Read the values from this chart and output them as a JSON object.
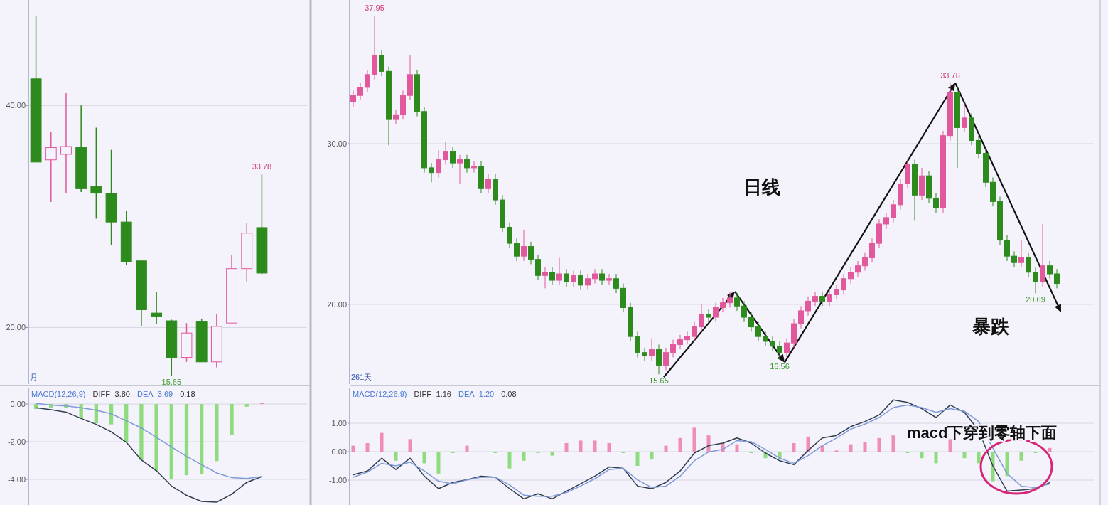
{
  "chart_data": [
    {
      "type": "candlestick",
      "categories": [
        null,
        null,
        null,
        null,
        null,
        null,
        null,
        null,
        null,
        null,
        null,
        null,
        null,
        null,
        null,
        null
      ],
      "ylim": [
        14.9,
        49.5
      ],
      "yticks": [
        {
          "value": 20,
          "label": "20.00"
        },
        {
          "value": 40,
          "label": "40.00"
        }
      ],
      "grid": "y",
      "tick_labels": "y",
      "ohlc": [
        [
          42.4,
          48.1,
          34.9,
          34.9
        ],
        [
          35.1,
          37.6,
          31.3,
          36.2
        ],
        [
          35.6,
          41.1,
          32.1,
          36.3
        ],
        [
          36.2,
          40.0,
          32.2,
          32.5
        ],
        [
          32.7,
          38.0,
          29.8,
          32.1
        ],
        [
          32.1,
          36.0,
          27.4,
          29.5
        ],
        [
          29.5,
          30.5,
          25.6,
          25.9
        ],
        [
          26.0,
          26.0,
          20.1,
          21.6
        ],
        [
          21.3,
          23.2,
          20.3,
          21.0
        ],
        [
          20.6,
          20.7,
          15.65,
          17.3
        ],
        [
          17.3,
          20.4,
          16.9,
          19.5
        ],
        [
          20.5,
          20.8,
          16.9,
          16.9
        ],
        [
          16.9,
          21.2,
          16.4,
          20.1
        ],
        [
          20.4,
          26.5,
          20.4,
          25.3
        ],
        [
          25.3,
          29.4,
          24.1,
          28.5
        ],
        [
          29.0,
          33.78,
          24.8,
          24.9
        ]
      ],
      "annotations": [
        {
          "text": "33.78",
          "y": 33.78
        },
        {
          "text": "15.65",
          "y": 15.65
        },
        "月"
      ]
    },
    {
      "type": "line",
      "categories": [
        null,
        null,
        null,
        null,
        null,
        null,
        null,
        null,
        null,
        null,
        null,
        null,
        null,
        null,
        null,
        null
      ],
      "ylim": [
        -5.36,
        0.87
      ],
      "yticks": [
        {
          "value": 0,
          "label": "0.00"
        },
        {
          "value": -2,
          "label": "-2.00"
        },
        {
          "value": -4,
          "label": "-4.00"
        }
      ],
      "grid": "y",
      "tick_labels": "y",
      "series": [
        {
          "type": "bar",
          "colors": [
            "#8fdc7e",
            "#8fdc7e",
            "#8fdc7e",
            "#8fdc7e",
            "#8fdc7e",
            "#8fdc7e",
            "#8fdc7e",
            "#8fdc7e",
            "#8fdc7e",
            "#8fdc7e",
            "#8fdc7e",
            "#8fdc7e",
            "#8fdc7e",
            "#8fdc7e",
            "#8fdc7e",
            "#f08cb8"
          ],
          "values": [
            -0.26,
            -0.2,
            -0.2,
            -0.77,
            -1.02,
            -1.08,
            -2.03,
            -2.97,
            -3.54,
            -3.97,
            -3.78,
            -3.72,
            -3.03,
            -1.65,
            -0.14,
            0.05
          ]
        },
        {
          "type": "line",
          "color": "#2f3d4f",
          "values": [
            -0.2,
            -0.3,
            -0.43,
            -0.77,
            -1.08,
            -1.48,
            -2.03,
            -2.97,
            -3.54,
            -4.35,
            -4.85,
            -5.17,
            -5.21,
            -4.79,
            -4.16,
            -3.85
          ]
        },
        {
          "type": "line",
          "color": "#7f9ad8",
          "values": [
            0.03,
            -0.05,
            -0.1,
            -0.2,
            -0.33,
            -0.52,
            -0.89,
            -1.27,
            -1.77,
            -2.28,
            -2.78,
            -3.22,
            -3.66,
            -3.91,
            -3.95,
            -3.85
          ]
        }
      ],
      "annotations": [
        "MACD(12,26,9)",
        "DIFF -3.80",
        "DEA -3.69",
        "0.18"
      ]
    },
    {
      "type": "candlestick",
      "categories": [
        null,
        null,
        null,
        null,
        null,
        null,
        null,
        null,
        null,
        null,
        null,
        null,
        null,
        null,
        null,
        null,
        null,
        null,
        null,
        null,
        null,
        null,
        null,
        null,
        null,
        null,
        null,
        null,
        null,
        null,
        null,
        null,
        null,
        null,
        null,
        null,
        null,
        null,
        null,
        null,
        null,
        null,
        null,
        null,
        null,
        null,
        null,
        null,
        null,
        null,
        null,
        null,
        null,
        null,
        null,
        null,
        null,
        null,
        null,
        null,
        null,
        null,
        null,
        null,
        null,
        null,
        null,
        null,
        null,
        null,
        null,
        null,
        null,
        null,
        null,
        null,
        null,
        null,
        null,
        null,
        null,
        null,
        null,
        null,
        null,
        null,
        null,
        null,
        null,
        null,
        null,
        null,
        null,
        null,
        null,
        null,
        null,
        null,
        null,
        null
      ],
      "ylim": [
        15.04,
        38.94
      ],
      "yticks": [
        {
          "value": 20,
          "label": "20.00"
        },
        {
          "value": 30,
          "label": "30.00"
        }
      ],
      "grid": "y",
      "tick_labels": "y",
      "ohlc": [
        [
          32.6,
          33.3,
          32.3,
          33.0
        ],
        [
          33.0,
          33.8,
          32.7,
          33.5
        ],
        [
          33.5,
          34.6,
          33.2,
          34.3
        ],
        [
          34.3,
          37.95,
          34.0,
          35.5
        ],
        [
          35.5,
          35.8,
          34.2,
          34.5
        ],
        [
          34.5,
          34.8,
          29.9,
          31.5
        ],
        [
          31.5,
          32.1,
          31.2,
          31.8
        ],
        [
          31.8,
          33.3,
          31.5,
          33.0
        ],
        [
          33.0,
          35.5,
          32.7,
          34.3
        ],
        [
          34.3,
          34.6,
          31.7,
          32.0
        ],
        [
          32.0,
          32.3,
          28.2,
          28.5
        ],
        [
          28.5,
          28.8,
          27.6,
          28.2
        ],
        [
          28.2,
          29.6,
          27.9,
          29.0
        ],
        [
          29.0,
          30.1,
          28.7,
          29.5
        ],
        [
          29.5,
          29.8,
          28.5,
          28.8
        ],
        [
          28.8,
          29.3,
          27.5,
          29.0
        ],
        [
          29.0,
          29.3,
          28.2,
          28.5
        ],
        [
          28.5,
          28.9,
          28.2,
          28.6
        ],
        [
          28.6,
          28.9,
          26.9,
          27.2
        ],
        [
          27.2,
          28.1,
          26.9,
          27.8
        ],
        [
          27.8,
          28.1,
          26.2,
          26.5
        ],
        [
          26.5,
          26.8,
          24.5,
          24.8
        ],
        [
          24.8,
          25.1,
          23.5,
          23.8
        ],
        [
          23.8,
          24.1,
          22.7,
          23.0
        ],
        [
          23.0,
          24.6,
          22.7,
          23.6
        ],
        [
          23.6,
          23.9,
          22.5,
          22.8
        ],
        [
          22.8,
          23.1,
          21.5,
          21.8
        ],
        [
          21.8,
          22.3,
          21.0,
          22.0
        ],
        [
          22.0,
          22.3,
          21.2,
          21.5
        ],
        [
          21.5,
          22.9,
          21.2,
          21.9
        ],
        [
          21.9,
          22.2,
          21.1,
          21.4
        ],
        [
          21.4,
          22.1,
          21.1,
          21.8
        ],
        [
          21.8,
          22.1,
          20.9,
          21.2
        ],
        [
          21.2,
          21.9,
          20.9,
          21.6
        ],
        [
          21.6,
          22.2,
          21.3,
          21.9
        ],
        [
          21.9,
          22.2,
          21.2,
          21.5
        ],
        [
          21.5,
          21.9,
          21.2,
          21.6
        ],
        [
          21.6,
          21.9,
          20.7,
          21.0
        ],
        [
          21.0,
          21.3,
          19.5,
          19.8
        ],
        [
          19.8,
          20.1,
          17.7,
          18.0
        ],
        [
          18.0,
          18.3,
          16.7,
          17.0
        ],
        [
          17.0,
          17.3,
          16.5,
          16.8
        ],
        [
          16.8,
          17.9,
          16.5,
          17.2
        ],
        [
          17.2,
          17.5,
          15.65,
          16.2
        ],
        [
          16.2,
          17.3,
          15.9,
          17.0
        ],
        [
          17.0,
          17.8,
          16.7,
          17.5
        ],
        [
          17.5,
          18.1,
          17.2,
          17.8
        ],
        [
          17.8,
          18.3,
          17.5,
          18.0
        ],
        [
          18.0,
          18.9,
          17.7,
          18.6
        ],
        [
          18.6,
          20.0,
          18.3,
          19.4
        ],
        [
          19.4,
          19.7,
          18.9,
          19.2
        ],
        [
          19.2,
          20.1,
          18.9,
          19.8
        ],
        [
          19.8,
          20.4,
          19.5,
          20.1
        ],
        [
          20.1,
          20.8,
          19.8,
          20.4
        ],
        [
          20.4,
          20.7,
          19.6,
          19.9
        ],
        [
          19.9,
          20.2,
          18.9,
          19.2
        ],
        [
          19.2,
          19.5,
          18.3,
          18.6
        ],
        [
          18.6,
          18.9,
          17.7,
          18.0
        ],
        [
          18.0,
          18.3,
          17.4,
          17.7
        ],
        [
          17.7,
          18.0,
          17.1,
          17.4
        ],
        [
          17.4,
          17.7,
          16.56,
          17.0
        ],
        [
          17.0,
          17.9,
          16.7,
          17.6
        ],
        [
          17.6,
          19.1,
          17.3,
          18.8
        ],
        [
          18.8,
          19.9,
          18.5,
          19.6
        ],
        [
          19.6,
          20.5,
          19.3,
          20.2
        ],
        [
          20.2,
          20.8,
          19.9,
          20.5
        ],
        [
          20.5,
          20.8,
          19.9,
          20.2
        ],
        [
          20.2,
          20.9,
          19.9,
          20.6
        ],
        [
          20.6,
          21.2,
          20.3,
          20.9
        ],
        [
          20.9,
          21.9,
          20.6,
          21.6
        ],
        [
          21.6,
          22.3,
          21.3,
          22.0
        ],
        [
          22.0,
          22.7,
          21.7,
          22.4
        ],
        [
          22.4,
          23.2,
          22.1,
          22.9
        ],
        [
          22.9,
          24.1,
          22.6,
          23.8
        ],
        [
          23.8,
          25.3,
          23.5,
          25.0
        ],
        [
          25.0,
          25.7,
          24.7,
          25.4
        ],
        [
          25.4,
          26.5,
          25.1,
          26.2
        ],
        [
          26.2,
          27.8,
          25.9,
          27.5
        ],
        [
          27.5,
          29.0,
          27.2,
          28.7
        ],
        [
          28.7,
          29.0,
          25.2,
          26.8
        ],
        [
          26.8,
          28.5,
          26.5,
          28.0
        ],
        [
          28.0,
          28.3,
          26.3,
          26.6
        ],
        [
          26.6,
          26.9,
          25.7,
          26.0
        ],
        [
          26.0,
          30.8,
          25.7,
          30.5
        ],
        [
          30.5,
          33.78,
          30.2,
          33.2
        ],
        [
          33.2,
          33.5,
          28.5,
          31.0
        ],
        [
          31.0,
          32.5,
          30.7,
          31.6
        ],
        [
          31.6,
          31.9,
          29.9,
          30.2
        ],
        [
          30.2,
          30.5,
          29.1,
          29.4
        ],
        [
          29.4,
          29.7,
          27.3,
          27.6
        ],
        [
          27.6,
          27.9,
          26.1,
          26.4
        ],
        [
          26.4,
          26.7,
          23.7,
          24.0
        ],
        [
          24.0,
          24.3,
          22.7,
          23.0
        ],
        [
          23.0,
          23.3,
          22.3,
          22.6
        ],
        [
          22.6,
          24.0,
          22.3,
          22.9
        ],
        [
          22.9,
          23.2,
          21.7,
          22.0
        ],
        [
          22.0,
          22.3,
          20.69,
          21.4
        ],
        [
          21.4,
          25.0,
          21.1,
          22.4
        ],
        [
          22.4,
          22.7,
          21.6,
          21.9
        ],
        [
          21.9,
          22.2,
          21.0,
          21.3
        ]
      ],
      "annotations": [
        {
          "text": "37.95",
          "y": 37.95
        },
        {
          "text": "15.65",
          "y": 15.65
        },
        {
          "text": "16.56",
          "y": 16.56
        },
        {
          "text": "33.78",
          "y": 33.78
        },
        {
          "text": "20.69",
          "y": 20.69
        },
        "261天",
        "日线",
        "暴跌"
      ]
    },
    {
      "type": "line",
      "categories": [
        null,
        null,
        null,
        null,
        null,
        null,
        null,
        null,
        null,
        null,
        null,
        null,
        null,
        null,
        null,
        null,
        null,
        null,
        null,
        null,
        null,
        null,
        null,
        null,
        null,
        null,
        null,
        null,
        null,
        null,
        null,
        null,
        null,
        null,
        null,
        null,
        null,
        null,
        null,
        null,
        null,
        null,
        null,
        null,
        null,
        null,
        null,
        null,
        null,
        null
      ],
      "ylim": [
        -1.875,
        2.25
      ],
      "yticks": [
        {
          "value": -1,
          "label": "-1.00"
        },
        {
          "value": 0,
          "label": "0.00"
        },
        {
          "value": 1,
          "label": "1.00"
        }
      ],
      "grid": "y",
      "tick_labels": "y",
      "series": [
        {
          "type": "bar",
          "colors": [
            "#f08cb8",
            "#f08cb8",
            "#f08cb8",
            "#8fdc7e",
            "#f08cb8",
            "#8fdc7e",
            "#8fdc7e",
            "#8fdc7e",
            "#f08cb8",
            "#8fdc7e",
            "#8fdc7e",
            "#8fdc7e",
            "#8fdc7e",
            "#8fdc7e",
            "#8fdc7e",
            "#f08cb8",
            "#f08cb8",
            "#f08cb8",
            "#f08cb8",
            "#8fdc7e",
            "#8fdc7e",
            "#8fdc7e",
            "#f08cb8",
            "#f08cb8",
            "#f08cb8",
            "#f08cb8",
            "#f08cb8",
            "#f08cb8",
            "#8fdc7e",
            "#8fdc7e",
            "#8fdc7e",
            "#f08cb8",
            "#f08cb8",
            "#f08cb8",
            "#f08cb8",
            "#f08cb8",
            "#f08cb8",
            "#f08cb8",
            "#f08cb8",
            "#8fdc7e",
            "#8fdc7e",
            "#8fdc7e",
            "#f08cb8",
            "#8fdc7e",
            "#8fdc7e",
            "#8fdc7e",
            "#8fdc7e",
            "#8fdc7e",
            "#8fdc7e",
            "#f08cb8"
          ],
          "values": [
            0.21,
            0.3,
            0.66,
            -0.32,
            0.44,
            -0.41,
            -0.77,
            -0.05,
            0.21,
            -0.01,
            -0.05,
            -0.59,
            -0.32,
            -0.05,
            -0.14,
            0.3,
            0.39,
            0.39,
            0.3,
            -0.05,
            -0.5,
            -0.28,
            0.21,
            0.48,
            0.84,
            0.57,
            0.3,
            0.26,
            -0.05,
            -0.23,
            -0.28,
            0.3,
            0.53,
            0.21,
            0.04,
            0.26,
            0.35,
            0.48,
            0.57,
            -0.05,
            -0.23,
            -0.41,
            0.44,
            -0.23,
            -0.41,
            -1.04,
            -0.86,
            -0.32,
            -0.05,
            0.13
          ]
        },
        {
          "type": "line",
          "color": "#2f3d4f",
          "values": [
            -0.81,
            -0.68,
            -0.23,
            -0.63,
            -0.23,
            -0.86,
            -1.3,
            -1.08,
            -0.99,
            -0.86,
            -0.9,
            -1.3,
            -1.66,
            -1.48,
            -1.66,
            -1.39,
            -1.13,
            -0.86,
            -0.54,
            -0.59,
            -1.21,
            -1.3,
            -1.08,
            -0.68,
            -0.05,
            0.21,
            0.3,
            0.48,
            0.3,
            -0.05,
            -0.32,
            -0.46,
            0.04,
            0.48,
            0.57,
            0.88,
            1.06,
            1.29,
            1.82,
            1.73,
            1.51,
            1.2,
            1.64,
            1.38,
            0.75,
            -0.5,
            -1.39,
            -1.35,
            -1.3,
            -1.09
          ]
        },
        {
          "type": "line",
          "color": "#7f9ad8",
          "values": [
            -0.9,
            -0.72,
            -0.41,
            -0.5,
            -0.37,
            -0.68,
            -1.04,
            -1.13,
            -0.99,
            -0.9,
            -0.9,
            -1.17,
            -1.53,
            -1.57,
            -1.57,
            -1.44,
            -1.21,
            -0.95,
            -0.63,
            -0.59,
            -0.99,
            -1.26,
            -1.21,
            -0.86,
            -0.32,
            -0.01,
            0.08,
            0.39,
            0.35,
            0.08,
            -0.23,
            -0.41,
            -0.14,
            0.21,
            0.48,
            0.79,
            0.97,
            1.2,
            1.55,
            1.64,
            1.55,
            1.38,
            1.51,
            1.42,
            1.06,
            0.13,
            -0.77,
            -1.21,
            -1.26,
            -1.13
          ]
        }
      ],
      "annotations": [
        "MACD(12,26,9)",
        "DIFF -1.16",
        "DEA -1.20",
        "0.08",
        "macd下穿到零轴下面"
      ]
    }
  ]
}
